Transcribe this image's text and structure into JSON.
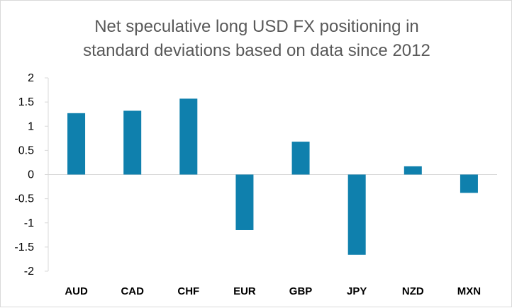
{
  "chart_data": {
    "type": "bar",
    "title_lines": [
      "Net speculative long USD FX positioning in",
      "standard deviations based on data since 2012"
    ],
    "categories": [
      "AUD",
      "CAD",
      "CHF",
      "EUR",
      "GBP",
      "JPY",
      "NZD",
      "MXN"
    ],
    "values": [
      1.27,
      1.32,
      1.57,
      -1.15,
      0.68,
      -1.66,
      0.17,
      -0.38
    ],
    "ylim": [
      -2,
      2
    ],
    "yticks": [
      2,
      1.5,
      1,
      0.5,
      0,
      -0.5,
      -1,
      -1.5,
      -2
    ],
    "ytick_labels": [
      "2",
      "1.5",
      "1",
      "0.5",
      "0",
      "-0.5",
      "-1",
      "-1.5",
      "-2"
    ],
    "bar_color": "#0f80ad",
    "axis_color": "#d9d9d9",
    "grid": false,
    "legend": "none"
  }
}
